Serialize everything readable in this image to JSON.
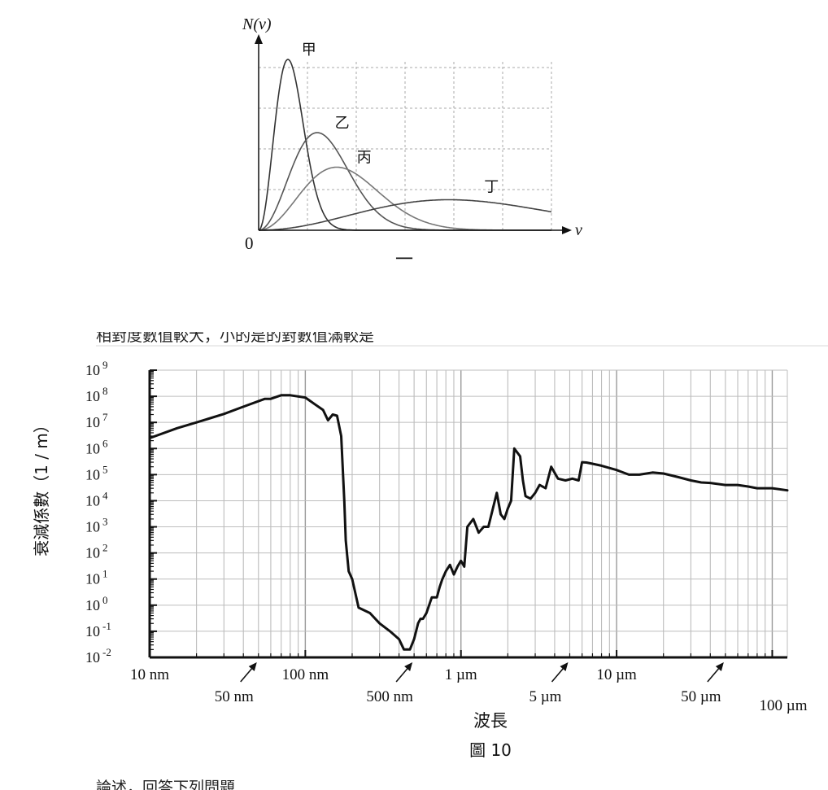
{
  "figure_top": {
    "ylabel": "N(v)",
    "xlabel": "v",
    "origin_label": "0",
    "caption": "一"
  },
  "figure_bottom": {
    "ylabel": "衰減係數（1 / m）",
    "xlabel": "波長",
    "caption": "圖 10",
    "arrow_labels": [
      "50 nm",
      "500 nm",
      "5 µm",
      "50 µm"
    ]
  },
  "cut_text": {
    "top": "相對度數值較大，小的是的對數值滿較是",
    "bottom": "論述，回答下列問題"
  },
  "chart_data": [
    {
      "type": "line",
      "title": "",
      "xlabel": "v",
      "ylabel": "N(v)",
      "grid": true,
      "series": [
        {
          "name": "甲",
          "shape": "peaked distribution",
          "peak_v": 0.6,
          "peak_N": 4.2,
          "color": "#333333"
        },
        {
          "name": "乙",
          "shape": "peaked distribution",
          "peak_v": 1.2,
          "peak_N": 2.4,
          "color": "#555555"
        },
        {
          "name": "丙",
          "shape": "peaked distribution",
          "peak_v": 1.6,
          "peak_N": 1.55,
          "color": "#777777"
        },
        {
          "name": "丁",
          "shape": "peaked distribution",
          "peak_v": 3.9,
          "peak_N": 0.75,
          "color": "#444444"
        }
      ]
    },
    {
      "type": "line",
      "title": "",
      "xlabel": "波長",
      "ylabel": "衰減係數（1 / m）",
      "x_scale": "log",
      "y_scale": "log",
      "x_unit": "nm",
      "xlim": [
        10,
        125000
      ],
      "ylim": [
        0.01,
        1000000000
      ],
      "grid": true,
      "x_ticks": [
        "10 nm",
        "100 nm",
        "1 µm",
        "10 µm",
        "100 µm"
      ],
      "y_ticks": [
        "10 9",
        "10 8",
        "10 7",
        "10 6",
        "10 5",
        "10 4",
        "10 3",
        "10 2",
        "10 1",
        "10 0",
        "10 -1",
        "10 -2"
      ],
      "series": [
        {
          "name": "",
          "x": [
            10,
            15,
            20,
            30,
            40,
            55,
            60,
            70,
            80,
            100,
            115,
            130,
            140,
            150,
            160,
            170,
            178,
            182,
            190,
            200,
            220,
            260,
            300,
            350,
            400,
            430,
            470,
            500,
            530,
            550,
            570,
            600,
            650,
            700,
            730,
            760,
            800,
            850,
            900,
            950,
            1000,
            1050,
            1100,
            1200,
            1300,
            1400,
            1500,
            1700,
            1800,
            1900,
            2000,
            2100,
            2200,
            2400,
            2500,
            2600,
            2800,
            3000,
            3200,
            3500,
            3800,
            4200,
            4700,
            5200,
            5700,
            6000,
            6400,
            7000,
            8000,
            10000,
            12000,
            14000,
            17000,
            20000,
            25000,
            30000,
            35000,
            40000,
            50000,
            60000,
            70000,
            80000,
            100000,
            125000
          ],
          "y": [
            2500000,
            6000000,
            10000000,
            21000000,
            40000000,
            80000000,
            80000000,
            110000000,
            110000000,
            90000000,
            50000000,
            30000000,
            12000000,
            20000000,
            18000000,
            3000000,
            10000,
            300,
            20,
            10,
            0.8,
            0.5,
            0.2,
            0.1,
            0.05,
            0.02,
            0.02,
            0.05,
            0.2,
            0.3,
            0.3,
            0.5,
            2,
            2,
            5,
            10,
            20,
            35,
            15,
            30,
            50,
            30,
            1000,
            2000,
            600,
            1000,
            1000,
            20000,
            3000,
            2000,
            5000,
            10000,
            1000000,
            500000,
            60000,
            15000,
            12000,
            20000,
            40000,
            30000,
            200000,
            70000,
            60000,
            70000,
            60000,
            300000,
            290000,
            260000,
            220000,
            150000,
            100000,
            100000,
            120000,
            110000,
            80000,
            60000,
            50000,
            48000,
            40000,
            40000,
            35000,
            30000,
            30000,
            25000
          ],
          "color": "#111111"
        }
      ]
    }
  ]
}
